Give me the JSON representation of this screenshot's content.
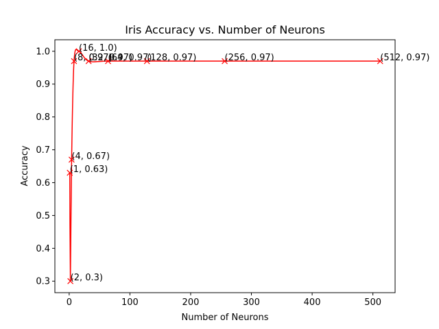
{
  "chart_data": {
    "type": "line",
    "title": "Iris Accuracy vs. Number of Neurons",
    "xlabel": "Number of Neurons",
    "ylabel": "Accuracy",
    "xlim": [
      -23.55,
      536.55
    ],
    "ylim": [
      0.265,
      1.035
    ],
    "xticks": [
      0,
      100,
      200,
      300,
      400,
      500
    ],
    "yticks": [
      0.3,
      0.4,
      0.5,
      0.6,
      0.7,
      0.8,
      0.9,
      1.0
    ],
    "xtick_labels": [
      "0",
      "100",
      "200",
      "300",
      "400",
      "500"
    ],
    "ytick_labels": [
      "0.3",
      "0.4",
      "0.5",
      "0.6",
      "0.7",
      "0.8",
      "0.9",
      "1.0"
    ],
    "grid": false,
    "legend": false,
    "line_color": "#ff0000",
    "marker": "x",
    "smoothed": true,
    "series": [
      {
        "x": [
          1,
          2,
          4,
          8,
          16,
          32,
          64,
          128,
          256,
          512
        ],
        "values": [
          0.63,
          0.3,
          0.67,
          0.97,
          1.0,
          0.97,
          0.97,
          0.97,
          0.97,
          0.97
        ]
      }
    ],
    "annotations": [
      "(1, 0.63)",
      "(2, 0.3)",
      "(4, 0.67)",
      "(8, 0.97)",
      "(16, 1.0)",
      "(32, 0.97)",
      "(64, 0.97)",
      "(128, 0.97)",
      "(256, 0.97)",
      "(512, 0.97)"
    ]
  }
}
